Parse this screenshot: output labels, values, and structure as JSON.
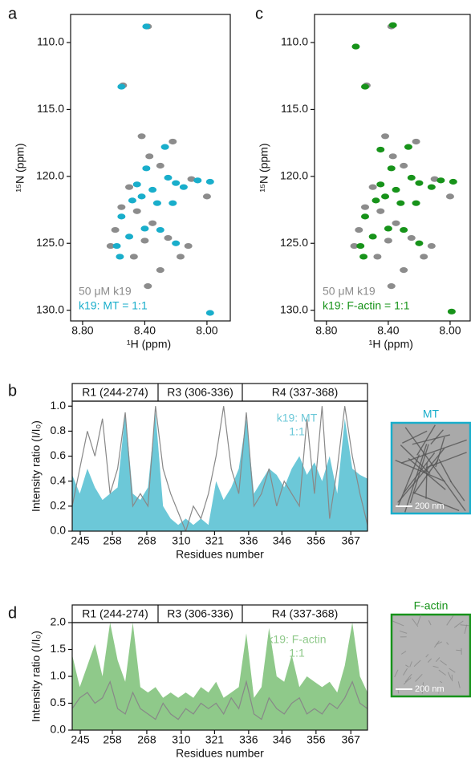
{
  "chart_data": [
    {
      "type": "scatter",
      "panel": "a",
      "xlabel": "¹H (ppm)",
      "ylabel": "¹⁵N (ppm)",
      "xlim": [
        8.877,
        7.85
      ],
      "ylim": [
        130.8,
        107.9
      ],
      "xticks": [
        {
          "value": 8.8,
          "label": "8.80"
        },
        {
          "value": 8.4,
          "label": "8.40"
        },
        {
          "value": 8,
          "label": "8.00"
        }
      ],
      "yticks": [
        {
          "value": 110,
          "label": "110.0"
        },
        {
          "value": 115,
          "label": "115.0"
        },
        {
          "value": 120,
          "label": "120.0"
        },
        {
          "value": 125,
          "label": "125.0"
        },
        {
          "value": 130,
          "label": "130.0"
        }
      ],
      "series": [
        {
          "name": "50 μM k19",
          "color": "#8c8c8c",
          "x": [
            8.38,
            8.54,
            8.42,
            8.37,
            8.22,
            8.3,
            8.5,
            8.45,
            8.35,
            8.25,
            8.12,
            8.4,
            8.59,
            8.62,
            8.47,
            8.3,
            8.38,
            8.17,
            8.1,
            8.0,
            8.55
          ],
          "values": [
            108.8,
            113.2,
            117.0,
            118.5,
            117.4,
            119.2,
            120.8,
            122.6,
            123.5,
            124.6,
            125.2,
            124.8,
            124.0,
            125.2,
            126.0,
            127.0,
            128.2,
            126.0,
            120.2,
            121.5,
            122.3
          ]
        },
        {
          "name": "k19: MT = 1:1",
          "color": "#19aecb",
          "x": [
            8.39,
            8.55,
            8.27,
            8.25,
            8.2,
            8.15,
            8.06,
            7.98,
            8.35,
            8.42,
            8.48,
            8.32,
            8.22,
            8.55,
            8.4,
            8.3,
            8.5,
            8.58,
            8.2,
            8.56,
            8.45,
            8.39,
            7.98
          ],
          "values": [
            108.8,
            113.3,
            117.8,
            120.1,
            120.5,
            120.8,
            120.3,
            120.4,
            121.0,
            121.5,
            121.8,
            122.0,
            122.0,
            123.0,
            123.9,
            124.0,
            124.5,
            125.2,
            125.0,
            126.0,
            120.6,
            119.4,
            130.2
          ]
        }
      ]
    },
    {
      "type": "area",
      "panel": "b",
      "xlabel": "Residues number",
      "ylabel": "Intensity ratio (I/I₀)",
      "regions": [
        "R1 (244-274)",
        "R3 (306-336)",
        "R4 (337-368)"
      ],
      "annotation": [
        "k19: MT",
        "1:1"
      ],
      "x": [
        0,
        1,
        2,
        3,
        4,
        5,
        6,
        7,
        8,
        9,
        10,
        11,
        12,
        13,
        14,
        15,
        16,
        17,
        18,
        19,
        20,
        21,
        22,
        23,
        24,
        25,
        26,
        27,
        28,
        29,
        30,
        31,
        32,
        33,
        34,
        35,
        36,
        37,
        38,
        39
      ],
      "xlim": [
        0,
        39
      ],
      "ylim": [
        0,
        1.04
      ],
      "xticks": [
        {
          "value": 1.06,
          "label": "245"
        },
        {
          "value": 5.3,
          "label": "258"
        },
        {
          "value": 9.85,
          "label": "268"
        },
        {
          "value": 14.4,
          "label": "310"
        },
        {
          "value": 18.8,
          "label": "321"
        },
        {
          "value": 23.3,
          "label": "336"
        },
        {
          "value": 27.7,
          "label": "346"
        },
        {
          "value": 32.2,
          "label": "356"
        },
        {
          "value": 36.8,
          "label": "367"
        }
      ],
      "yticks": [
        {
          "value": 0,
          "label": "0.0"
        },
        {
          "value": 0.2,
          "label": "0.2"
        },
        {
          "value": 0.4,
          "label": "0.4"
        },
        {
          "value": 0.6,
          "label": "0.6"
        },
        {
          "value": 0.8,
          "label": "0.8"
        },
        {
          "value": 1,
          "label": "1.0"
        }
      ],
      "series": [
        {
          "style": "area",
          "color": "#6cc8d8",
          "values": [
            0.45,
            0.3,
            0.5,
            0.35,
            0.25,
            0.3,
            0.35,
            0.95,
            0.3,
            0.25,
            0.35,
            0.95,
            0.2,
            0.1,
            0.05,
            0.1,
            0.05,
            0.1,
            0.05,
            0.4,
            0.25,
            0.35,
            0.5,
            0.9,
            0.3,
            0.4,
            0.5,
            0.45,
            0.35,
            0.5,
            0.6,
            0.45,
            0.55,
            0.4,
            0.6,
            0.3,
            0.9,
            0.5,
            0.45,
            0.42
          ]
        },
        {
          "style": "line",
          "color": "#888888",
          "values": [
            0.2,
            0.5,
            0.8,
            0.6,
            0.9,
            0.3,
            0.5,
            0.95,
            0.2,
            0.3,
            0.2,
            1.0,
            0.5,
            0.3,
            0.15,
            0.0,
            0.2,
            0.1,
            0.3,
            0.6,
            1.0,
            0.5,
            0.3,
            0.95,
            0.2,
            0.3,
            0.5,
            0.2,
            0.4,
            0.3,
            0.2,
            0.9,
            0.3,
            1.0,
            0.1,
            0.5,
            1.0,
            0.6,
            0.3,
            0.05
          ]
        }
      ]
    },
    {
      "type": "scatter",
      "panel": "c",
      "xlabel": "¹H (ppm)",
      "ylabel": "¹⁵N (ppm)",
      "xlim": [
        8.877,
        7.87
      ],
      "ylim": [
        130.8,
        107.9
      ],
      "xticks": [
        {
          "value": 8.8,
          "label": "8.80"
        },
        {
          "value": 8.4,
          "label": "8.40"
        },
        {
          "value": 8,
          "label": "8.00"
        }
      ],
      "yticks": [
        {
          "value": 110,
          "label": "110.0"
        },
        {
          "value": 115,
          "label": "115.0"
        },
        {
          "value": 120,
          "label": "120.0"
        },
        {
          "value": 125,
          "label": "125.0"
        },
        {
          "value": 130,
          "label": "130.0"
        }
      ],
      "series": [
        {
          "name": "50 μM k19",
          "color": "#8c8c8c",
          "x": [
            8.38,
            8.54,
            8.42,
            8.37,
            8.22,
            8.3,
            8.5,
            8.45,
            8.35,
            8.25,
            8.12,
            8.4,
            8.59,
            8.62,
            8.47,
            8.3,
            8.38,
            8.17,
            8.1,
            8.0,
            8.55
          ],
          "values": [
            108.8,
            113.2,
            117.0,
            118.5,
            117.4,
            119.2,
            120.8,
            122.6,
            123.5,
            124.6,
            125.2,
            124.8,
            124.0,
            125.2,
            126.0,
            127.0,
            128.2,
            126.0,
            120.2,
            121.5,
            122.3
          ]
        },
        {
          "name": "k19: F-actin = 1:1",
          "color": "#17931a",
          "x": [
            8.37,
            8.61,
            8.55,
            8.27,
            8.45,
            8.25,
            8.2,
            8.12,
            8.06,
            7.98,
            8.35,
            8.42,
            8.48,
            8.32,
            8.22,
            8.55,
            8.4,
            8.3,
            8.5,
            8.58,
            8.2,
            8.56,
            8.45,
            8.38,
            7.99
          ],
          "values": [
            108.7,
            110.3,
            113.3,
            117.8,
            118.0,
            120.1,
            120.5,
            120.8,
            120.3,
            120.4,
            121.0,
            121.5,
            121.8,
            122.0,
            122.0,
            123.0,
            123.9,
            124.0,
            124.5,
            125.2,
            125.0,
            126.0,
            120.6,
            119.4,
            130.1
          ]
        }
      ]
    },
    {
      "type": "area",
      "panel": "d",
      "xlabel": "Residues number",
      "ylabel": "Intensity ratio (I/I₀)",
      "regions": [
        "R1 (244-274)",
        "R3 (306-336)",
        "R4 (337-368)"
      ],
      "annotation": [
        "k19: F-actin",
        "1:1"
      ],
      "x": [
        0,
        1,
        2,
        3,
        4,
        5,
        6,
        7,
        8,
        9,
        10,
        11,
        12,
        13,
        14,
        15,
        16,
        17,
        18,
        19,
        20,
        21,
        22,
        23,
        24,
        25,
        26,
        27,
        28,
        29,
        30,
        31,
        32,
        33,
        34,
        35,
        36,
        37,
        38,
        39
      ],
      "xlim": [
        0,
        39
      ],
      "ylim": [
        0,
        2
      ],
      "xticks": [
        {
          "value": 1.06,
          "label": "245"
        },
        {
          "value": 5.3,
          "label": "258"
        },
        {
          "value": 9.85,
          "label": "268"
        },
        {
          "value": 14.4,
          "label": "310"
        },
        {
          "value": 18.8,
          "label": "321"
        },
        {
          "value": 23.3,
          "label": "336"
        },
        {
          "value": 27.7,
          "label": "346"
        },
        {
          "value": 32.2,
          "label": "356"
        },
        {
          "value": 36.8,
          "label": "367"
        }
      ],
      "yticks": [
        {
          "value": 0,
          "label": "0.0"
        },
        {
          "value": 0.5,
          "label": "0.5"
        },
        {
          "value": 1,
          "label": "1.0"
        },
        {
          "value": 1.5,
          "label": "1.5"
        },
        {
          "value": 2,
          "label": "2.0"
        }
      ],
      "series": [
        {
          "style": "area",
          "color": "#8fc98a",
          "values": [
            1.4,
            0.8,
            1.2,
            1.6,
            1.0,
            2.0,
            1.3,
            0.9,
            2.0,
            0.8,
            0.7,
            0.8,
            0.6,
            0.7,
            0.6,
            0.7,
            0.6,
            0.8,
            0.7,
            0.9,
            0.6,
            0.7,
            0.8,
            1.8,
            0.6,
            0.8,
            1.9,
            1.0,
            0.9,
            1.4,
            0.8,
            1.0,
            0.9,
            0.8,
            0.9,
            0.7,
            1.2,
            2.0,
            1.0,
            0.7
          ]
        },
        {
          "style": "line",
          "color": "#888888",
          "values": [
            0.4,
            0.6,
            0.7,
            0.5,
            0.6,
            0.9,
            0.4,
            0.3,
            0.7,
            0.4,
            0.3,
            0.2,
            0.5,
            0.3,
            0.2,
            0.4,
            0.3,
            0.5,
            0.4,
            0.5,
            0.3,
            0.6,
            0.4,
            0.9,
            0.3,
            0.2,
            0.6,
            0.4,
            0.3,
            0.5,
            0.6,
            0.3,
            0.4,
            0.3,
            0.5,
            0.4,
            0.6,
            0.9,
            0.5,
            0.4
          ]
        }
      ]
    }
  ],
  "images": [
    {
      "title": "MT",
      "scale_bar": "200 nm",
      "color": "#19aecb"
    },
    {
      "title": "F-actin",
      "scale_bar": "200 nm",
      "color": "#17931a"
    }
  ]
}
